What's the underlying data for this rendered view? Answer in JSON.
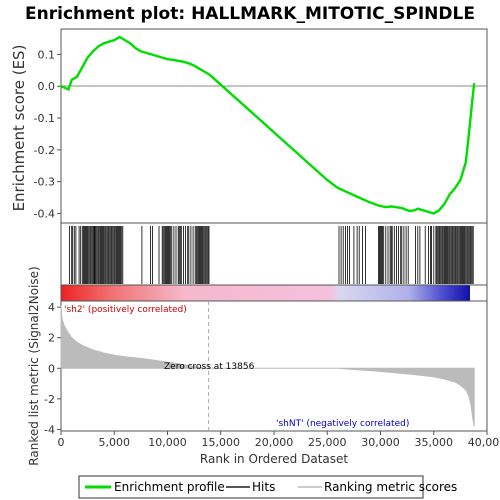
{
  "chart_data": {
    "type": "line",
    "title": "Enrichment plot: HALLMARK_MITOTIC_SPINDLE",
    "ylabel_top": "Enrichment score (ES)",
    "ylabel_bottom": "Ranked list metric (Signal2Noise)",
    "xlabel": "Rank in Ordered Dataset",
    "x_range": [
      0,
      40000
    ],
    "top_y_range": [
      -0.43,
      0.18
    ],
    "bottom_y_range": [
      -4.1,
      4.4
    ],
    "x_ticks": [
      "0",
      "5,000",
      "10,000",
      "15,000",
      "20,000",
      "25,000",
      "30,000",
      "35,000",
      "40,000"
    ],
    "x_tick_values": [
      0,
      5000,
      10000,
      15000,
      20000,
      25000,
      30000,
      35000,
      40000
    ],
    "top_y_ticks": [
      "0.1",
      "0.0",
      "-0.1",
      "-0.2",
      "-0.3",
      "-0.4"
    ],
    "top_y_tick_values": [
      0.1,
      0.0,
      -0.1,
      -0.2,
      -0.3,
      -0.4
    ],
    "bottom_y_ticks": [
      "4",
      "2",
      "0",
      "-2",
      "-4"
    ],
    "bottom_y_tick_values": [
      4,
      2,
      0,
      -2,
      -4
    ],
    "zero_cross_label": "Zero cross at 13856",
    "zero_cross": 13856,
    "pos_label": "'sh2' (positively correlated)",
    "neg_label": "'shNT' (negatively correlated)",
    "colors": {
      "enrichment": "#00dd00",
      "hits": "#000000",
      "metric_fill": "#bbbbbb",
      "pos_label": "#cc0000",
      "neg_label": "#0000cc",
      "zero_line": "#aaaaaa"
    },
    "series": [
      {
        "name": "Enrichment profile",
        "x": [
          0,
          700,
          1000,
          1500,
          2000,
          2500,
          3000,
          3500,
          4000,
          4500,
          5000,
          5500,
          6000,
          6500,
          7000,
          7500,
          8000,
          8500,
          9000,
          9500,
          10000,
          10500,
          11000,
          11500,
          12000,
          12500,
          13000,
          13500,
          14000,
          15000,
          16000,
          17000,
          18000,
          19000,
          20000,
          21000,
          22000,
          23000,
          24000,
          25000,
          26000,
          27000,
          28000,
          29000,
          29800,
          30500,
          31000,
          32000,
          32700,
          33200,
          33500,
          34000,
          34500,
          35000,
          35500,
          36000,
          36500,
          37000,
          37500,
          38000,
          38300,
          38600,
          38800
        ],
        "y": [
          0.0,
          -0.01,
          0.02,
          0.03,
          0.06,
          0.09,
          0.11,
          0.125,
          0.135,
          0.14,
          0.145,
          0.155,
          0.145,
          0.135,
          0.12,
          0.11,
          0.105,
          0.1,
          0.095,
          0.09,
          0.085,
          0.083,
          0.08,
          0.077,
          0.072,
          0.065,
          0.055,
          0.045,
          0.035,
          0.005,
          -0.025,
          -0.055,
          -0.085,
          -0.115,
          -0.145,
          -0.175,
          -0.205,
          -0.235,
          -0.265,
          -0.295,
          -0.32,
          -0.335,
          -0.35,
          -0.365,
          -0.375,
          -0.38,
          -0.378,
          -0.383,
          -0.392,
          -0.39,
          -0.385,
          -0.39,
          -0.395,
          -0.4,
          -0.39,
          -0.37,
          -0.34,
          -0.32,
          -0.295,
          -0.24,
          -0.15,
          -0.05,
          0.01
        ]
      },
      {
        "name": "Hits",
        "x": [
          800,
          1000,
          1100,
          1250,
          1400,
          1700,
          1850,
          2000,
          2100,
          2200,
          2300,
          2400,
          2500,
          2600,
          2700,
          2800,
          2900,
          3000,
          3100,
          3150,
          3200,
          3300,
          3400,
          3500,
          3600,
          3700,
          3800,
          3900,
          4000,
          4100,
          4200,
          4300,
          4400,
          4500,
          4600,
          4700,
          4800,
          4900,
          5000,
          5100,
          5200,
          5300,
          5400,
          5500,
          5600,
          5700,
          5800,
          7600,
          8400,
          8600,
          9200,
          9500,
          9600,
          9700,
          9800,
          9900,
          10000,
          10100,
          10200,
          10300,
          10400,
          10600,
          10800,
          11000,
          11100,
          11200,
          11300,
          11500,
          11700,
          11900,
          12000,
          12200,
          12400,
          12600,
          12700,
          12800,
          12900,
          13000,
          13100,
          13200,
          13300,
          13400,
          13500,
          13600,
          13700,
          13800,
          13900,
          26100,
          26300,
          26500,
          26700,
          26900,
          27100,
          27500,
          27800,
          28000,
          28300,
          28600,
          29800,
          29900,
          30000,
          30100,
          30200,
          30300,
          30500,
          30700,
          30900,
          31000,
          31100,
          31300,
          31500,
          31700,
          31900,
          32000,
          32200,
          32400,
          32600,
          33300,
          33500,
          33700,
          34200,
          34500,
          34700,
          34800,
          35000,
          35200,
          35300,
          35400,
          35500,
          35600,
          35700,
          35800,
          35900,
          36000,
          36100,
          36200,
          36300,
          36400,
          36500,
          36600,
          36700,
          36800,
          36900,
          37000,
          37100,
          37200,
          37300,
          37400,
          37500,
          37600,
          37700,
          37800,
          37900,
          38000,
          38100,
          38200,
          38300,
          38400,
          38500,
          38600,
          38700
        ]
      },
      {
        "name": "Ranking metric scores",
        "x": [
          0,
          100,
          300,
          600,
          1000,
          1500,
          2000,
          3000,
          4000,
          5000,
          6000,
          7000,
          8000,
          9000,
          10000,
          11000,
          12000,
          13000,
          13856,
          16000,
          20000,
          24000,
          26000,
          27000,
          30000,
          33000,
          35000,
          36000,
          37000,
          37500,
          38000,
          38300,
          38500,
          38650,
          38800
        ],
        "y": [
          4.1,
          3.2,
          2.8,
          2.4,
          2.0,
          1.7,
          1.5,
          1.2,
          1.0,
          0.85,
          0.75,
          0.68,
          0.6,
          0.5,
          0.4,
          0.3,
          0.18,
          0.06,
          0.0,
          0.0,
          0.0,
          0.0,
          0.0,
          -0.05,
          -0.2,
          -0.4,
          -0.55,
          -0.7,
          -0.9,
          -1.1,
          -1.4,
          -1.8,
          -2.4,
          -3.2,
          -3.8
        ]
      }
    ],
    "legend": {
      "placement": "bottom",
      "items": [
        "Enrichment profile",
        "Hits",
        "Ranking metric scores"
      ]
    }
  }
}
